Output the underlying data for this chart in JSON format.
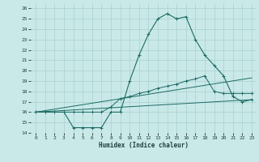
{
  "xlabel": "Humidex (Indice chaleur)",
  "xlim": [
    -0.5,
    23.5
  ],
  "ylim": [
    14,
    26.5
  ],
  "yticks": [
    14,
    15,
    16,
    17,
    18,
    19,
    20,
    21,
    22,
    23,
    24,
    25,
    26
  ],
  "xticks": [
    0,
    1,
    2,
    3,
    4,
    5,
    6,
    7,
    8,
    9,
    10,
    11,
    12,
    13,
    14,
    15,
    16,
    17,
    18,
    19,
    20,
    21,
    22,
    23
  ],
  "background_color": "#c9e9e8",
  "grid_color": "#aed4d2",
  "line_color": "#1d6b65",
  "line1_x": [
    0,
    1,
    2,
    3,
    4,
    5,
    6,
    7,
    8,
    9,
    10,
    11,
    12,
    13,
    14,
    15,
    16,
    17,
    18,
    19,
    20,
    21,
    22,
    23
  ],
  "line1_y": [
    16,
    16,
    16,
    16,
    14.5,
    14.5,
    14.5,
    14.5,
    16,
    16,
    19.0,
    21.5,
    23.5,
    25.0,
    25.5,
    25.0,
    25.2,
    23.0,
    21.5,
    20.5,
    19.5,
    17.5,
    17.0,
    17.2
  ],
  "line2_x": [
    0,
    1,
    2,
    3,
    4,
    5,
    6,
    7,
    8,
    9,
    10,
    11,
    12,
    13,
    14,
    15,
    16,
    17,
    18,
    19,
    20,
    21,
    22,
    23
  ],
  "line2_y": [
    16,
    16,
    16,
    16,
    16,
    16,
    16,
    16,
    16.5,
    17.3,
    17.5,
    17.8,
    18.0,
    18.3,
    18.5,
    18.7,
    19.0,
    19.2,
    19.5,
    18.0,
    17.8,
    17.8,
    17.8,
    17.8
  ],
  "line3_x": [
    0,
    23
  ],
  "line3_y": [
    16,
    19.3
  ],
  "line4_x": [
    0,
    23
  ],
  "line4_y": [
    16,
    17.2
  ]
}
